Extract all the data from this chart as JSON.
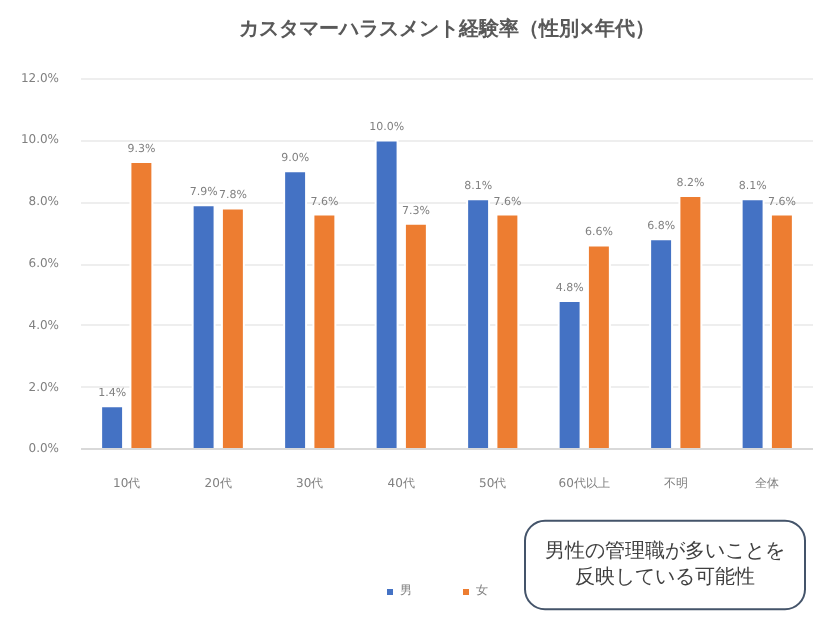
{
  "chart_data": {
    "type": "bar",
    "title": "カスタマーハラスメント経験率（性別×年代）",
    "categories": [
      "10代",
      "20代",
      "30代",
      "40代",
      "50代",
      "60代以上",
      "不明",
      "全体"
    ],
    "series": [
      {
        "name": "男",
        "color": "#4472c4",
        "values": [
          1.4,
          7.9,
          9.0,
          10.0,
          8.1,
          4.8,
          6.8,
          8.1
        ],
        "value_labels": [
          "1.4%",
          "7.9%",
          "9.0%",
          "10.0%",
          "8.1%",
          "4.8%",
          "6.8%",
          "8.1%"
        ]
      },
      {
        "name": "女",
        "color": "#ed7d31",
        "values": [
          9.3,
          7.8,
          7.6,
          7.3,
          7.6,
          6.6,
          8.2,
          7.6
        ],
        "value_labels": [
          "9.3%",
          "7.8%",
          "7.6%",
          "7.3%",
          "7.6%",
          "6.6%",
          "8.2%",
          "7.6%"
        ]
      }
    ],
    "ylim": [
      0,
      12
    ],
    "yticks": [
      {
        "value": 0,
        "label": "0.0%"
      },
      {
        "value": 2,
        "label": "2.0%"
      },
      {
        "value": 4,
        "label": "4.0%"
      },
      {
        "value": 6,
        "label": "6.0%"
      },
      {
        "value": 8,
        "label": "8.0%"
      },
      {
        "value": 10,
        "label": "10.0%"
      },
      {
        "value": 12,
        "label": "12.0%"
      }
    ],
    "grid": "y",
    "legend": "bottom",
    "annotations": [
      "男性の管理職が多いことを反映している可能性"
    ]
  }
}
